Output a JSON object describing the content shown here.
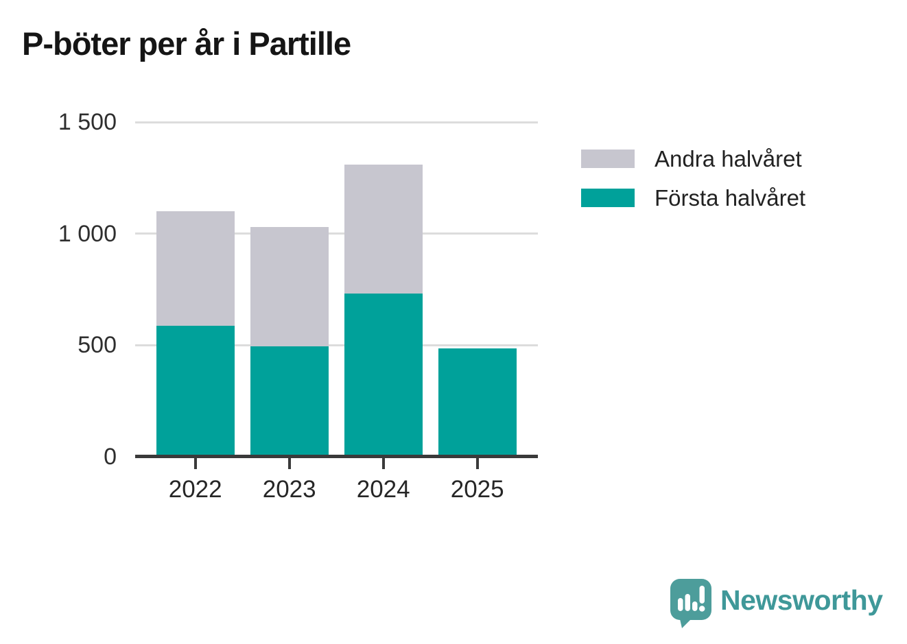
{
  "title": "P-böter per år i Partille",
  "chart_data": {
    "type": "bar",
    "stacked": true,
    "title": "P-böter per år i Partille",
    "categories": [
      "2022",
      "2023",
      "2024",
      "2025"
    ],
    "series": [
      {
        "name": "Första halvåret",
        "color": "#00a19a",
        "values": [
          585,
          495,
          730,
          485
        ]
      },
      {
        "name": "Andra halvåret",
        "color": "#c7c6cf",
        "values": [
          515,
          535,
          580,
          0
        ]
      }
    ],
    "totals": [
      1100,
      1030,
      1310,
      485
    ],
    "xlabel": "",
    "ylabel": "",
    "ylim": [
      0,
      1500
    ],
    "yticks": [
      {
        "value": 0,
        "label": "0"
      },
      {
        "value": 500,
        "label": "500"
      },
      {
        "value": 1000,
        "label": "1 000"
      },
      {
        "value": 1500,
        "label": "1 500"
      }
    ],
    "grid": "horizontal",
    "legend_position": "right-top"
  },
  "legend": {
    "items": [
      {
        "label": "Andra halvåret",
        "color": "#c7c6cf"
      },
      {
        "label": "Första halvåret",
        "color": "#00a19a"
      }
    ]
  },
  "colors": {
    "first_half": "#00a19a",
    "second_half": "#c7c6cf",
    "axis": "#3a3a3a",
    "gridline": "#dcdcdc",
    "logo": "#4d9d9b",
    "logo_text": "#3f9899"
  },
  "logo": {
    "text": "Newsworthy"
  }
}
